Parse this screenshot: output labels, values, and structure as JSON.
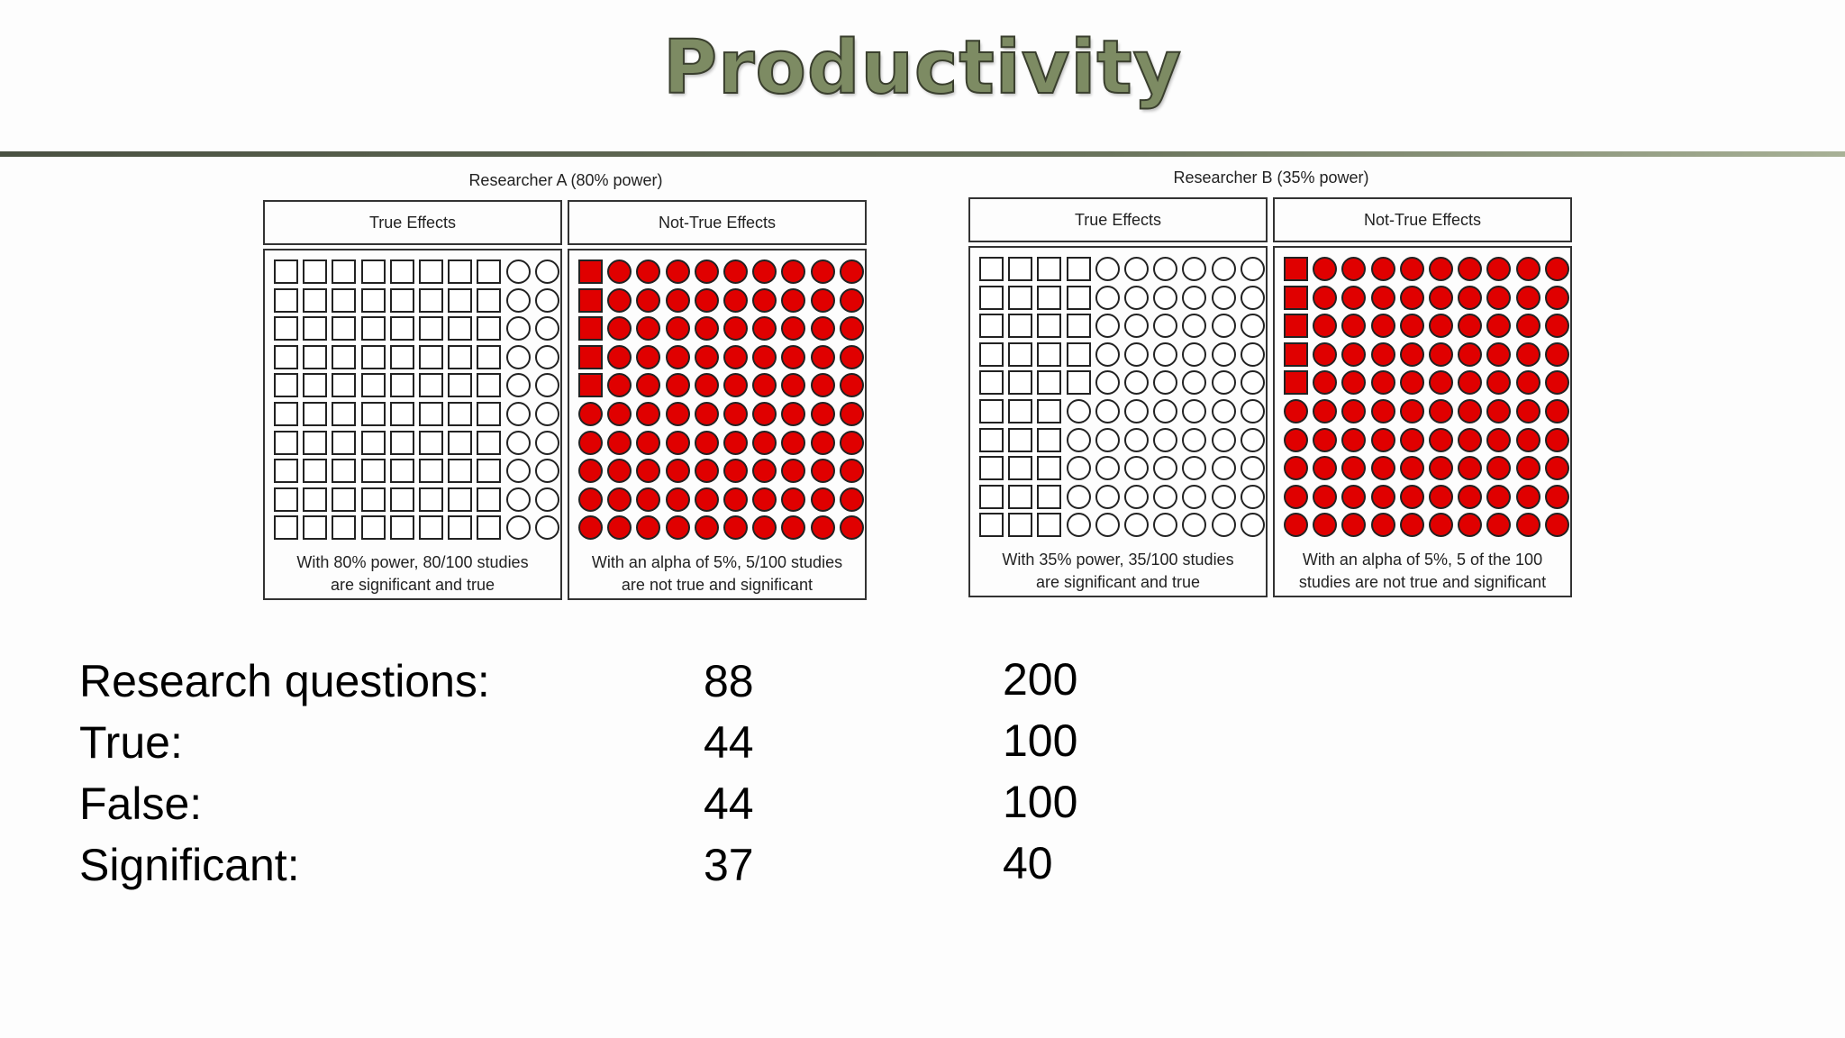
{
  "slide": {
    "title": "Productivity"
  },
  "panels": [
    {
      "caption": "Researcher A (80% power)",
      "columns": [
        {
          "header": "True Effects",
          "note_line1": "With 80% power, 80/100 studies",
          "note_line2": "are significant and true",
          "grid": {
            "rows": 10,
            "cols": 10,
            "squares_per_row": 8,
            "red_square_rows": 0,
            "filled": false
          }
        },
        {
          "header": "Not-True Effects",
          "note_line1": "With an alpha of 5%, 5/100 studies",
          "note_line2": "are not true and significant",
          "grid": {
            "rows": 10,
            "cols": 10,
            "squares_per_row": 1,
            "red_square_rows": 5,
            "filled": true
          }
        }
      ]
    },
    {
      "caption": "Researcher B (35% power)",
      "columns": [
        {
          "header": "True Effects",
          "note_line1": "With 35% power, 35/100 studies",
          "note_line2": "are significant and true",
          "grid": {
            "rows": 10,
            "cols": 10,
            "squares_first_rows": 4,
            "squares_later_rows": 3,
            "rows_with_four": 5,
            "filled": false
          }
        },
        {
          "header": "Not-True Effects",
          "note_line1": "With an alpha of 5%, 5 of the 100",
          "note_line2": "studies are not true and significant",
          "grid": {
            "rows": 10,
            "cols": 10,
            "squares_per_row": 1,
            "red_square_rows": 5,
            "filled": true
          }
        }
      ]
    }
  ],
  "stats": {
    "rows": [
      {
        "label": "Research questions:",
        "a": "88",
        "b": "200"
      },
      {
        "label": "True:",
        "a": "44",
        "b": "100"
      },
      {
        "label": "False:",
        "a": "44",
        "b": "100"
      },
      {
        "label": "Significant:",
        "a": "37",
        "b": "40"
      }
    ]
  },
  "colors": {
    "marker_red": "#e00000",
    "title_fill": "#7d8b63"
  }
}
